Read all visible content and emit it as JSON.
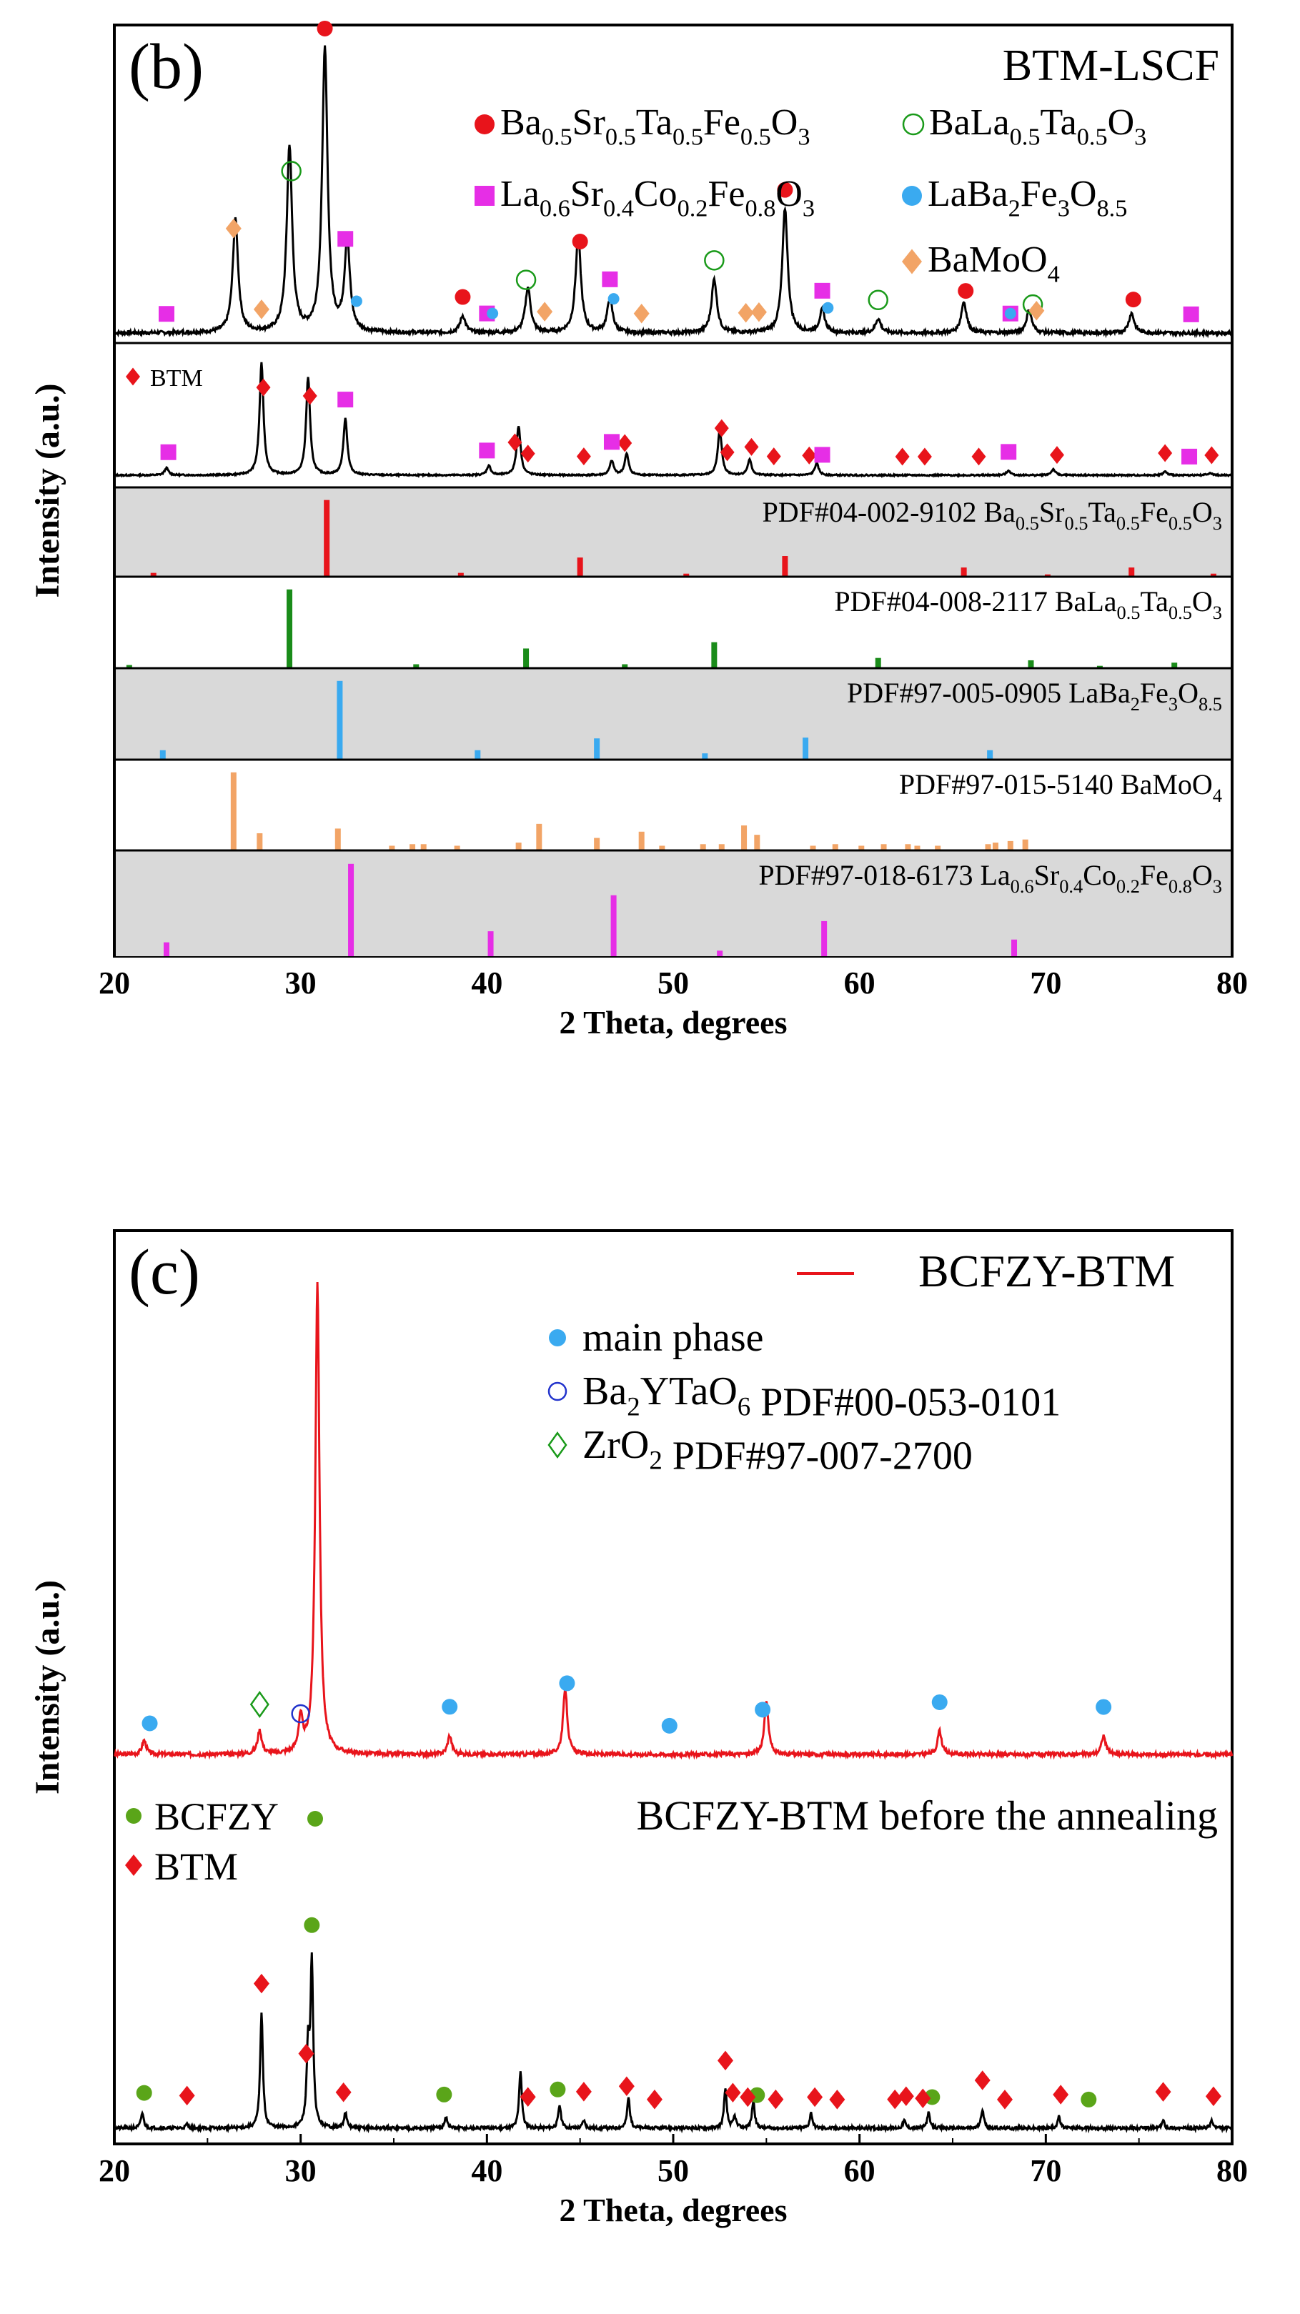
{
  "chart_data": [
    {
      "type": "line",
      "panel_label": "(b)",
      "title": "BTM-LSCF",
      "xlabel": "2 Theta, degrees",
      "ylabel": "Intensity (a.u.)",
      "xlim": [
        20,
        80
      ],
      "xticks": [
        20,
        30,
        40,
        50,
        60,
        70,
        80
      ],
      "legend": [
        {
          "symbol": "circle",
          "color": "#e8141b",
          "text": "Ba0.5Sr0.5Ta0.5Fe0.5O3"
        },
        {
          "symbol": "circle-open",
          "color": "#1a9a1a",
          "text": "BaLa0.5Ta0.5O3"
        },
        {
          "symbol": "square",
          "color": "#e62ee6",
          "text": "La0.6Sr0.4Co0.2Fe0.8O3"
        },
        {
          "symbol": "circle",
          "color": "#3aaaf0",
          "text": "LaBa2Fe3O8.5"
        },
        {
          "symbol": "diamond",
          "color": "#f2a466",
          "text": "BaMoO4"
        }
      ],
      "series": [
        {
          "name": "BTM-LSCF",
          "peaks": [
            [
              26.5,
              0.4
            ],
            [
              29.4,
              0.66
            ],
            [
              31.3,
              1.0
            ],
            [
              32.5,
              0.32
            ],
            [
              38.7,
              0.06
            ],
            [
              42.2,
              0.16
            ],
            [
              44.9,
              0.34
            ],
            [
              46.6,
              0.12
            ],
            [
              52.2,
              0.19
            ],
            [
              56.0,
              0.44
            ],
            [
              58.0,
              0.08
            ],
            [
              61.0,
              0.05
            ],
            [
              65.6,
              0.11
            ],
            [
              69.1,
              0.08
            ],
            [
              74.6,
              0.07
            ]
          ]
        },
        {
          "name": "BTM",
          "legend": "BTM",
          "peaks": [
            [
              22.8,
              0.06
            ],
            [
              27.9,
              0.95
            ],
            [
              30.4,
              0.83
            ],
            [
              32.4,
              0.48
            ],
            [
              40.1,
              0.08
            ],
            [
              41.7,
              0.42
            ],
            [
              46.7,
              0.12
            ],
            [
              47.5,
              0.18
            ],
            [
              52.5,
              0.39
            ],
            [
              54.1,
              0.13
            ],
            [
              57.7,
              0.1
            ],
            [
              68.0,
              0.04
            ],
            [
              70.4,
              0.05
            ],
            [
              76.4,
              0.03
            ],
            [
              78.8,
              0.02
            ]
          ]
        }
      ],
      "markers": [
        {
          "phase": "Ba0.5Sr0.5Ta0.5Fe0.5O3",
          "trace": 0,
          "x": [
            31.3,
            38.7,
            45.0,
            56.0,
            65.7,
            74.7
          ]
        },
        {
          "phase": "BaLa0.5Ta0.5O3",
          "trace": 0,
          "x": [
            29.5,
            42.1,
            52.2,
            61.0,
            69.3
          ]
        },
        {
          "phase": "La0.6Sr0.4Co0.2Fe0.8O3",
          "trace": 0,
          "x": [
            22.8,
            32.4,
            40.0,
            46.6,
            58.0,
            68.1,
            77.8
          ]
        },
        {
          "phase": "LaBa2Fe3O8.5",
          "trace": 0,
          "x": [
            33.0,
            40.3,
            46.8,
            58.3,
            68.1
          ]
        },
        {
          "phase": "BaMoO4",
          "trace": 0,
          "x": [
            26.4,
            27.9,
            43.1,
            48.3,
            53.9,
            54.6,
            69.5
          ]
        },
        {
          "phase": "BTM",
          "trace": 1,
          "x": [
            28.0,
            30.5,
            41.5,
            42.2,
            45.2,
            47.4,
            52.6,
            52.9,
            54.2,
            55.4,
            57.3,
            62.3,
            63.5,
            66.4,
            70.6,
            76.4,
            78.9
          ]
        },
        {
          "phase": "La0.6Sr0.4Co0.2Fe0.8O3",
          "trace": 1,
          "x": [
            22.9,
            32.4,
            40.0,
            46.7,
            58.0,
            68.0,
            77.7
          ]
        }
      ],
      "reference_patterns": [
        {
          "label": "PDF#04-002-9102 Ba0.5Sr0.5Ta0.5Fe0.5O3",
          "color": "#e8141b",
          "shaded": true,
          "lines": [
            [
              22.1,
              0.05
            ],
            [
              31.4,
              1.0
            ],
            [
              38.6,
              0.05
            ],
            [
              45.0,
              0.25
            ],
            [
              50.7,
              0.04
            ],
            [
              56.0,
              0.27
            ],
            [
              65.6,
              0.12
            ],
            [
              70.1,
              0.03
            ],
            [
              74.6,
              0.12
            ],
            [
              79.0,
              0.04
            ]
          ]
        },
        {
          "label": "PDF#04-008-2117 BaLa0.5Ta0.5O3",
          "color": "#1a8c1a",
          "shaded": false,
          "lines": [
            [
              20.8,
              0.04
            ],
            [
              29.4,
              1.0
            ],
            [
              36.2,
              0.05
            ],
            [
              42.1,
              0.25
            ],
            [
              47.4,
              0.05
            ],
            [
              52.2,
              0.33
            ],
            [
              61.0,
              0.13
            ],
            [
              69.2,
              0.1
            ],
            [
              72.9,
              0.03
            ],
            [
              76.9,
              0.07
            ]
          ]
        },
        {
          "label": "PDF#97-005-0905 LaBa2Fe3O8.5",
          "color": "#3aaaf0",
          "shaded": true,
          "lines": [
            [
              22.6,
              0.12
            ],
            [
              32.1,
              1.0
            ],
            [
              39.5,
              0.12
            ],
            [
              45.9,
              0.27
            ],
            [
              51.7,
              0.08
            ],
            [
              57.1,
              0.28
            ],
            [
              67.0,
              0.12
            ]
          ]
        },
        {
          "label": "PDF#97-015-5140 BaMoO4",
          "color": "#f2a466",
          "shaded": false,
          "lines": [
            [
              26.4,
              1.0
            ],
            [
              27.8,
              0.22
            ],
            [
              32.0,
              0.28
            ],
            [
              34.9,
              0.06
            ],
            [
              36.0,
              0.08
            ],
            [
              36.6,
              0.08
            ],
            [
              38.4,
              0.06
            ],
            [
              41.7,
              0.1
            ],
            [
              42.8,
              0.34
            ],
            [
              45.9,
              0.16
            ],
            [
              48.3,
              0.24
            ],
            [
              49.4,
              0.06
            ],
            [
              51.6,
              0.08
            ],
            [
              52.6,
              0.08
            ],
            [
              53.8,
              0.32
            ],
            [
              54.5,
              0.2
            ],
            [
              57.5,
              0.06
            ],
            [
              58.7,
              0.08
            ],
            [
              60.1,
              0.06
            ],
            [
              61.3,
              0.08
            ],
            [
              62.6,
              0.08
            ],
            [
              63.1,
              0.06
            ],
            [
              64.2,
              0.06
            ],
            [
              66.9,
              0.08
            ],
            [
              67.3,
              0.1
            ],
            [
              68.1,
              0.12
            ],
            [
              68.9,
              0.14
            ]
          ]
        },
        {
          "label": "PDF#97-018-6173 La0.6Sr0.4Co0.2Fe0.8O3",
          "color": "#e62ee6",
          "shaded": true,
          "lines": [
            [
              22.8,
              0.15
            ],
            [
              32.7,
              1.0
            ],
            [
              40.2,
              0.27
            ],
            [
              46.8,
              0.66
            ],
            [
              52.5,
              0.06
            ],
            [
              58.1,
              0.38
            ],
            [
              68.3,
              0.18
            ]
          ]
        }
      ]
    },
    {
      "type": "line",
      "panel_label": "(c)",
      "xlabel": "2 Theta, degrees",
      "ylabel": "Intensity (a.u.)",
      "xlim": [
        20,
        80
      ],
      "xticks": [
        20,
        30,
        40,
        50,
        60,
        70,
        80
      ],
      "legend": [
        {
          "symbol": "line",
          "color": "#e8141b",
          "text": "BCFZY-BTM"
        },
        {
          "symbol": "circle",
          "color": "#3aaaf0",
          "text": "main phase"
        },
        {
          "symbol": "circle-open",
          "color": "#2233cc",
          "text": "Ba2YTaO6 PDF#00-053-0101"
        },
        {
          "symbol": "diamond-open",
          "color": "#1a9a1a",
          "text": "ZrO2 PDF#97-007-2700"
        }
      ],
      "series": [
        {
          "name": "BCFZY-BTM",
          "color": "#e8141b",
          "peaks": [
            [
              21.6,
              0.03
            ],
            [
              27.8,
              0.05
            ],
            [
              30.0,
              0.07
            ],
            [
              30.9,
              1.0
            ],
            [
              38.0,
              0.04
            ],
            [
              44.2,
              0.14
            ],
            [
              55.0,
              0.11
            ],
            [
              64.3,
              0.05
            ],
            [
              73.1,
              0.04
            ]
          ]
        },
        {
          "name": "BCFZY-BTM before the annealing",
          "color": "#000000",
          "peaks": [
            [
              21.5,
              0.04
            ],
            [
              23.9,
              0.01
            ],
            [
              27.9,
              0.3
            ],
            [
              30.4,
              0.2
            ],
            [
              30.6,
              0.42
            ],
            [
              32.4,
              0.04
            ],
            [
              37.8,
              0.03
            ],
            [
              41.8,
              0.15
            ],
            [
              43.9,
              0.06
            ],
            [
              45.2,
              0.02
            ],
            [
              47.6,
              0.08
            ],
            [
              52.8,
              0.1
            ],
            [
              53.3,
              0.03
            ],
            [
              54.3,
              0.07
            ],
            [
              57.4,
              0.04
            ],
            [
              62.4,
              0.02
            ],
            [
              63.7,
              0.04
            ],
            [
              66.6,
              0.05
            ],
            [
              70.7,
              0.03
            ],
            [
              76.3,
              0.02
            ],
            [
              78.9,
              0.02
            ]
          ]
        }
      ],
      "markers": [
        {
          "phase": "main phase",
          "trace": 0,
          "x": [
            21.9,
            38.0,
            44.3,
            49.8,
            54.8,
            64.3,
            73.1
          ]
        },
        {
          "phase": "Ba2YTaO6",
          "trace": 0,
          "x": [
            30.0
          ]
        },
        {
          "phase": "ZrO2",
          "trace": 0,
          "x": [
            27.8
          ]
        },
        {
          "phase": "BCFZY",
          "trace": 1,
          "x": [
            21.6,
            30.6,
            37.7,
            43.8,
            54.5,
            63.9,
            72.3
          ]
        },
        {
          "phase": "BTM",
          "trace": 1,
          "x": [
            23.9,
            27.9,
            30.3,
            32.3,
            42.2,
            45.2,
            47.5,
            49.0,
            52.8,
            53.2,
            54.0,
            55.5,
            57.6,
            58.8,
            61.9,
            62.5,
            63.4,
            66.6,
            67.8,
            70.8,
            76.3,
            79.0
          ]
        }
      ],
      "annotations": [
        {
          "text": "BCFZY",
          "symbol": "circle",
          "color": "#5aa519"
        },
        {
          "text": "BTM",
          "symbol": "diamond",
          "color": "#e8141b"
        }
      ]
    }
  ]
}
